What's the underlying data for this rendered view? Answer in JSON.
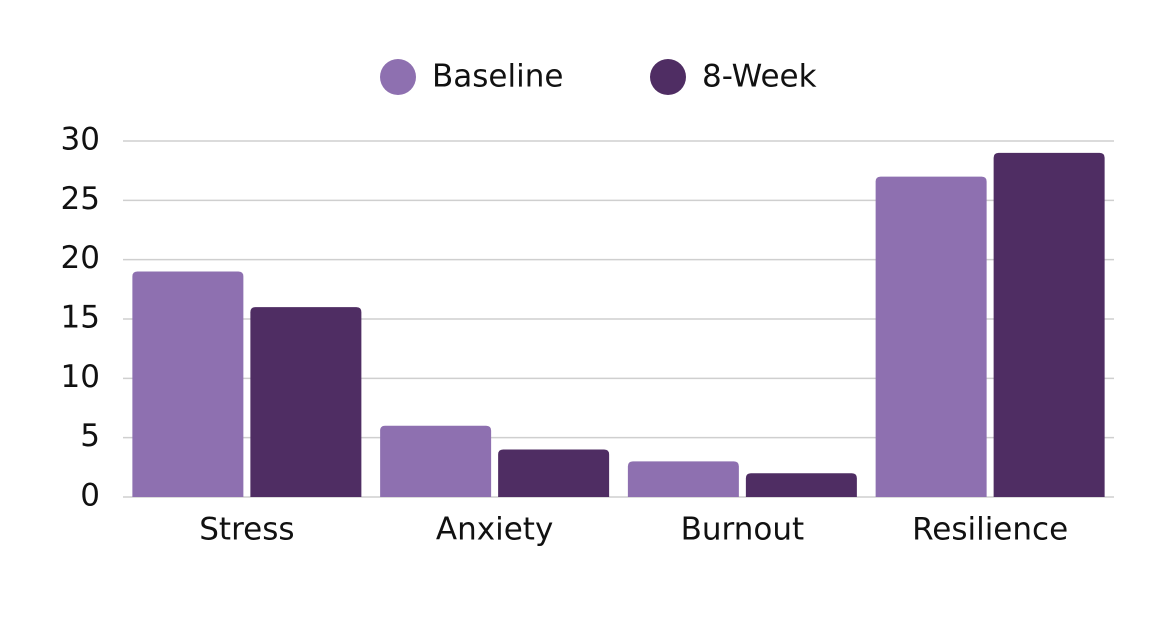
{
  "chart_data": {
    "type": "bar",
    "categories": [
      "Stress",
      "Anxiety",
      "Burnout",
      "Resilience"
    ],
    "series": [
      {
        "name": "Baseline",
        "color": "#8e70b0",
        "values": [
          19,
          6,
          3,
          27
        ]
      },
      {
        "name": "8-Week",
        "color": "#4f2d63",
        "values": [
          16,
          4,
          2,
          29
        ]
      }
    ],
    "ylim": [
      0,
      30
    ],
    "yticks": [
      0,
      5,
      10,
      15,
      20,
      25,
      30
    ],
    "grid": true,
    "legend": "top"
  }
}
